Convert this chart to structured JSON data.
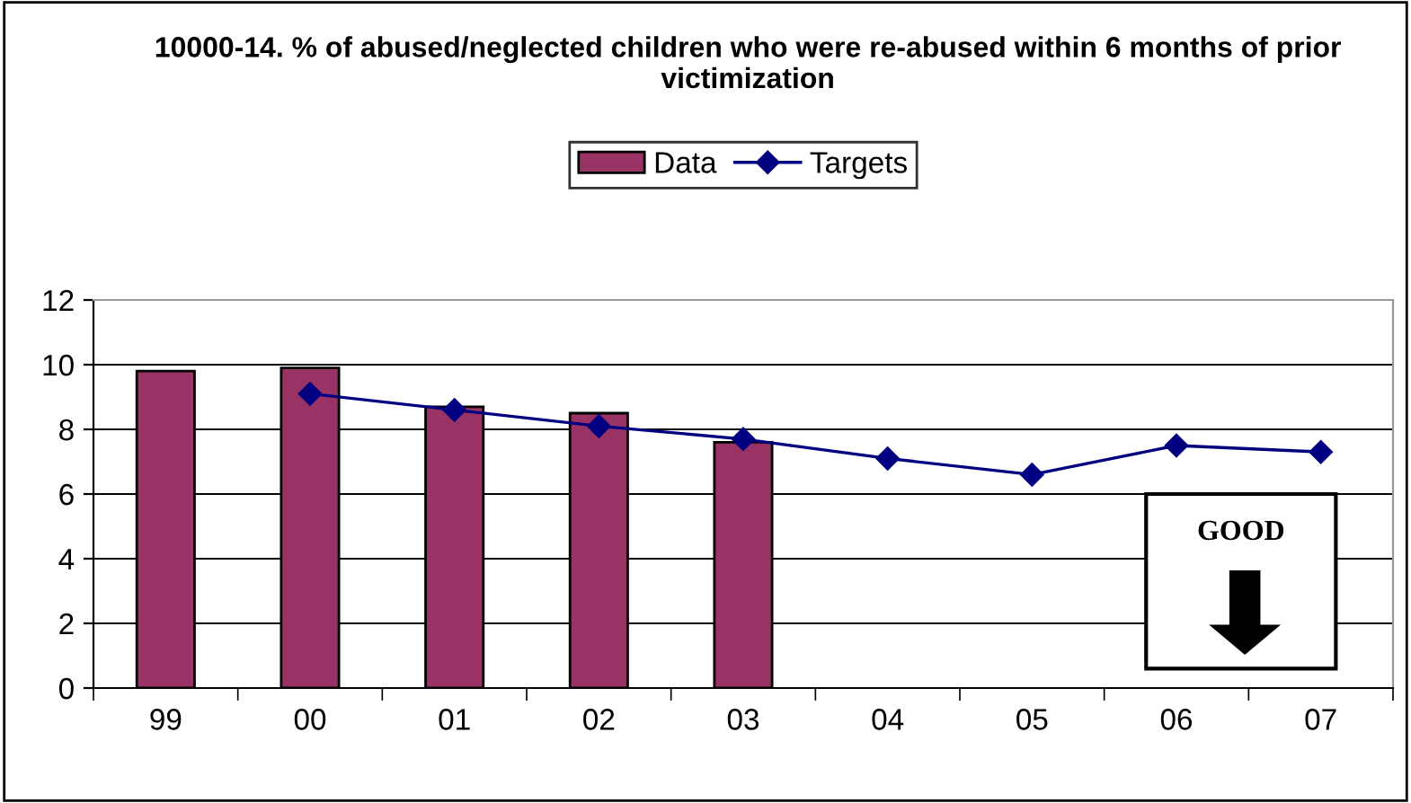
{
  "chart_data": {
    "type": "bar",
    "title": "10000-14. % of abused/neglected children who were re-abused within 6 months of prior victimization",
    "categories": [
      "99",
      "00",
      "01",
      "02",
      "03",
      "04",
      "05",
      "06",
      "07"
    ],
    "series": [
      {
        "name": "Data",
        "color": "#993366",
        "values": [
          9.8,
          9.9,
          8.7,
          8.5,
          7.6,
          null,
          null,
          null,
          null
        ]
      },
      {
        "name": "Targets",
        "type": "line",
        "color": "#000080",
        "marker": "diamond",
        "values": [
          null,
          9.1,
          8.6,
          8.1,
          7.7,
          7.1,
          6.6,
          7.5,
          7.3
        ]
      }
    ],
    "ylim": [
      0,
      12
    ],
    "yticks": [
      0,
      2,
      4,
      6,
      8,
      10,
      12
    ],
    "grid": "y",
    "legend": "top",
    "annotations": [
      "GOOD"
    ]
  }
}
